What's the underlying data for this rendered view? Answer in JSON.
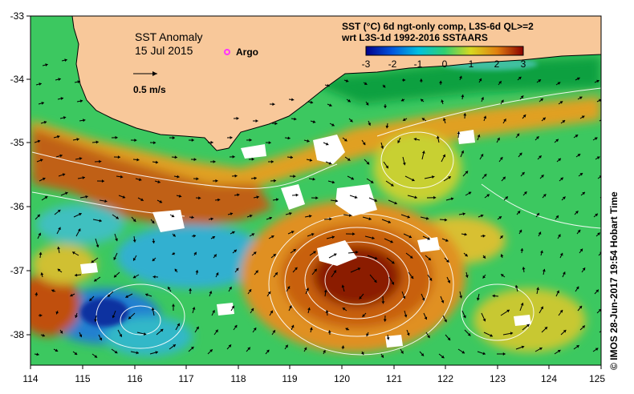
{
  "title": "SST Anomaly",
  "date": "15 Jul 2015",
  "legend": {
    "argo_label": "Argo",
    "argo_color": "#ff33ff",
    "scale_label": "0.5 m/s"
  },
  "colorbar": {
    "line1": "SST (°C) 6d ngt-only comp, L3S-6d QL>=2",
    "line2": "wrt L3S-1d 1992-2016 SSTAARS",
    "ticks": [
      "-3",
      "-2",
      "-1",
      "0",
      "1",
      "2",
      "3"
    ],
    "stops": [
      "#00008b",
      "#0055dd",
      "#00c0e0",
      "#30d070",
      "#d8d820",
      "#e08010",
      "#8b0000"
    ]
  },
  "axes": {
    "x_ticks": [
      "114",
      "115",
      "116",
      "117",
      "118",
      "119",
      "120",
      "121",
      "122",
      "123",
      "124",
      "125"
    ],
    "y_ticks": [
      "-33",
      "-34",
      "-35",
      "-36",
      "-37",
      "-38"
    ]
  },
  "colors": {
    "land": "#f8c89a",
    "missing": "#ffffff",
    "eddy_core": "#8b1a00"
  },
  "credit": "© IMOS 28-Jun-2017 19:54 Hobart Time"
}
